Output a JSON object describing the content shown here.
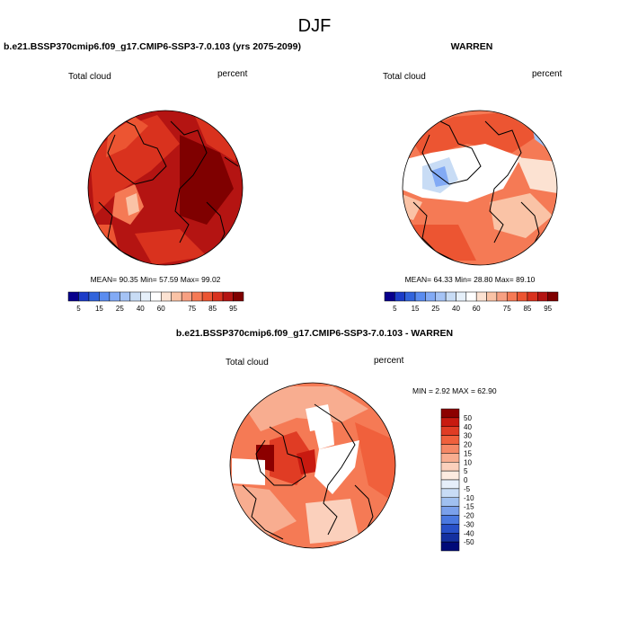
{
  "figure_title": "DJF",
  "chart_data": [
    {
      "type": "heatmap",
      "title": "b.e21.BSSP370cmip6.f09_g17.CMIP6-SSP3-7.0.103 (yrs 2075-2099)",
      "variable": "Total cloud",
      "units": "percent",
      "stats_text": "MEAN=  90.35  Min=  57.59  Max=  99.02",
      "stats": {
        "mean": 90.35,
        "min": 57.59,
        "max": 99.02
      },
      "colorbar_levels": [
        5,
        10,
        15,
        20,
        25,
        30,
        40,
        50,
        60,
        65,
        70,
        75,
        80,
        85,
        90,
        95
      ],
      "colorbar_tick_labels": [
        "5",
        "15",
        "25",
        "40",
        "60",
        "75",
        "85",
        "95"
      ],
      "colors": [
        "#08008c",
        "#1c3cc8",
        "#3264dc",
        "#5a8cf0",
        "#82aaf5",
        "#a5c3f5",
        "#c8dcf5",
        "#e6f0fa",
        "#ffffff",
        "#fce2d2",
        "#fac3a6",
        "#f7a082",
        "#f57a55",
        "#ec5532",
        "#d9321e",
        "#b41412",
        "#7f0000"
      ]
    },
    {
      "type": "heatmap",
      "title": "WARREN",
      "variable": "Total cloud",
      "units": "percent",
      "stats_text": "MEAN=  64.33  Min=  28.80  Max=  89.10",
      "stats": {
        "mean": 64.33,
        "min": 28.8,
        "max": 89.1
      },
      "colorbar_levels": [
        5,
        10,
        15,
        20,
        25,
        30,
        40,
        50,
        60,
        65,
        70,
        75,
        80,
        85,
        90,
        95
      ],
      "colorbar_tick_labels": [
        "5",
        "15",
        "25",
        "40",
        "60",
        "75",
        "85",
        "95"
      ],
      "colors": [
        "#08008c",
        "#1c3cc8",
        "#3264dc",
        "#5a8cf0",
        "#82aaf5",
        "#a5c3f5",
        "#c8dcf5",
        "#e6f0fa",
        "#ffffff",
        "#fce2d2",
        "#fac3a6",
        "#f7a082",
        "#f57a55",
        "#ec5532",
        "#d9321e",
        "#b41412",
        "#7f0000"
      ]
    },
    {
      "type": "heatmap",
      "title": "b.e21.BSSP370cmip6.f09_g17.CMIP6-SSP3-7.0.103 - WARREN",
      "variable": "Total cloud",
      "units": "percent",
      "stats_text": "MIN =   2.92 MAX =  62.90",
      "stats": {
        "min": 2.92,
        "max": 62.9
      },
      "colorbar_levels": [
        50,
        40,
        30,
        20,
        15,
        10,
        5,
        0,
        -5,
        -10,
        -15,
        -20,
        -30,
        -40,
        -50
      ],
      "colorbar_tick_labels": [
        "50",
        "40",
        "30",
        "20",
        "15",
        "10",
        "5",
        "0",
        "-5",
        "-10",
        "-15",
        "-20",
        "-30",
        "-40",
        "-50"
      ],
      "colors": [
        "#8c0000",
        "#c81a10",
        "#e03c24",
        "#f0603c",
        "#f58866",
        "#f8ad90",
        "#fbd0bc",
        "#fdebe0",
        "#e6effa",
        "#c8dcf5",
        "#a0c0f0",
        "#7aa0eb",
        "#4a78e0",
        "#2850c8",
        "#1430a0",
        "#000a78"
      ]
    }
  ]
}
